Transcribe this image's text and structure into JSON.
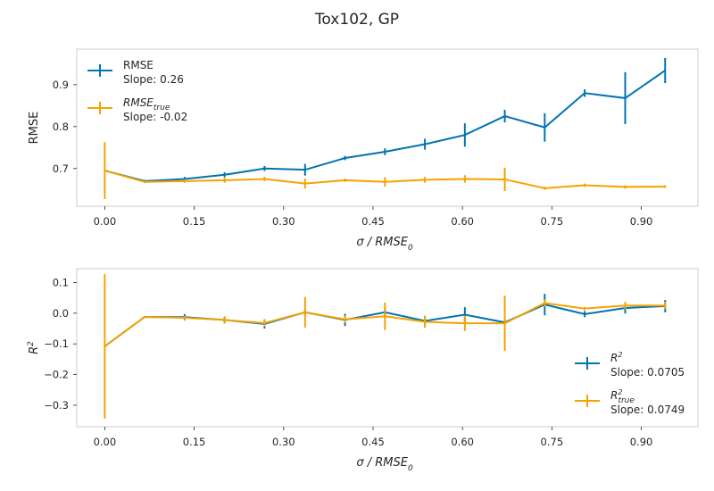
{
  "title": "Tox102, GP",
  "colors": {
    "series1": "#0173b2",
    "series2": "#f5a300",
    "axes": "#cccccc",
    "tick": "#262626"
  },
  "chart_data": [
    {
      "type": "line",
      "xlabel": "σ / RMSE₀",
      "xlabel_main": "σ / RMSE",
      "xlabel_sub": "0",
      "ylabel": "RMSE",
      "ylim": [
        0.61,
        0.985
      ],
      "xlim": [
        -0.047,
        0.995
      ],
      "x_ticks": [
        "0.00",
        "0.15",
        "0.30",
        "0.45",
        "0.60",
        "0.75",
        "0.90"
      ],
      "x_tick_values": [
        0,
        0.15,
        0.3,
        0.45,
        0.6,
        0.75,
        0.9
      ],
      "y_ticks": [
        "0.7",
        "0.8",
        "0.9"
      ],
      "y_tick_values": [
        0.7,
        0.8,
        0.9
      ],
      "legend_position": "top-left",
      "x": [
        0.0,
        0.067,
        0.134,
        0.201,
        0.268,
        0.336,
        0.403,
        0.47,
        0.537,
        0.604,
        0.671,
        0.738,
        0.805,
        0.873,
        0.94
      ],
      "series": [
        {
          "name": "RMSE",
          "legend_main": "RMSE",
          "legend_sub": "",
          "slope": "Slope: 0.26",
          "values": [
            0.695,
            0.67,
            0.675,
            0.685,
            0.7,
            0.697,
            0.725,
            0.74,
            0.758,
            0.78,
            0.825,
            0.798,
            0.88,
            0.868,
            0.934
          ],
          "errors": [
            0.003,
            0.003,
            0.005,
            0.006,
            0.006,
            0.014,
            0.005,
            0.008,
            0.013,
            0.028,
            0.015,
            0.034,
            0.009,
            0.062,
            0.03
          ]
        },
        {
          "name": "RMSE_true",
          "legend_main": "RMSE",
          "legend_sub": "true",
          "slope": "Slope: -0.02",
          "values": [
            0.695,
            0.668,
            0.67,
            0.672,
            0.675,
            0.664,
            0.672,
            0.668,
            0.673,
            0.675,
            0.674,
            0.653,
            0.66,
            0.656,
            0.657
          ],
          "errors": [
            0.068,
            0.003,
            0.004,
            0.006,
            0.005,
            0.012,
            0.004,
            0.011,
            0.007,
            0.009,
            0.028,
            0.004,
            0.004,
            0.004,
            0.003
          ]
        }
      ]
    },
    {
      "type": "line",
      "xlabel": "σ / RMSE₀",
      "xlabel_main": "σ / RMSE",
      "xlabel_sub": "0",
      "ylabel": "R²",
      "ylabel_main": "R",
      "ylabel_sup": "2",
      "ylim": [
        -0.37,
        0.145
      ],
      "xlim": [
        -0.047,
        0.995
      ],
      "x_ticks": [
        "0.00",
        "0.15",
        "0.30",
        "0.45",
        "0.60",
        "0.75",
        "0.90"
      ],
      "x_tick_values": [
        0,
        0.15,
        0.3,
        0.45,
        0.6,
        0.75,
        0.9
      ],
      "y_ticks": [
        "0.1",
        "0.0",
        "−0.1",
        "−0.2",
        "−0.3"
      ],
      "y_tick_values": [
        0.1,
        0.0,
        -0.1,
        -0.2,
        -0.3
      ],
      "legend_position": "bottom-right",
      "x": [
        0.0,
        0.067,
        0.134,
        0.201,
        0.268,
        0.336,
        0.403,
        0.47,
        0.537,
        0.604,
        0.671,
        0.738,
        0.805,
        0.873,
        0.94
      ],
      "series": [
        {
          "name": "R2",
          "legend_main": "R",
          "legend_sup": "2",
          "legend_sub": "",
          "slope": "Slope: 0.0705",
          "values": [
            -0.108,
            -0.012,
            -0.013,
            -0.022,
            -0.035,
            0.003,
            -0.022,
            0.003,
            -0.025,
            -0.005,
            -0.03,
            0.028,
            -0.003,
            0.017,
            0.023
          ],
          "errors": [
            0.003,
            0.003,
            0.01,
            0.01,
            0.015,
            0.01,
            0.02,
            0.015,
            0.015,
            0.025,
            0.01,
            0.035,
            0.01,
            0.018,
            0.02
          ]
        },
        {
          "name": "R2_true",
          "legend_main": "R",
          "legend_sup": "2",
          "legend_sub": "true",
          "slope": "Slope: 0.0749",
          "values": [
            -0.108,
            -0.012,
            -0.015,
            -0.022,
            -0.032,
            0.003,
            -0.02,
            -0.01,
            -0.028,
            -0.033,
            -0.033,
            0.033,
            0.015,
            0.025,
            0.025
          ],
          "errors": [
            0.235,
            0.003,
            0.006,
            0.012,
            0.012,
            0.05,
            0.012,
            0.045,
            0.02,
            0.025,
            0.09,
            0.012,
            0.005,
            0.012,
            0.012
          ]
        }
      ]
    }
  ]
}
